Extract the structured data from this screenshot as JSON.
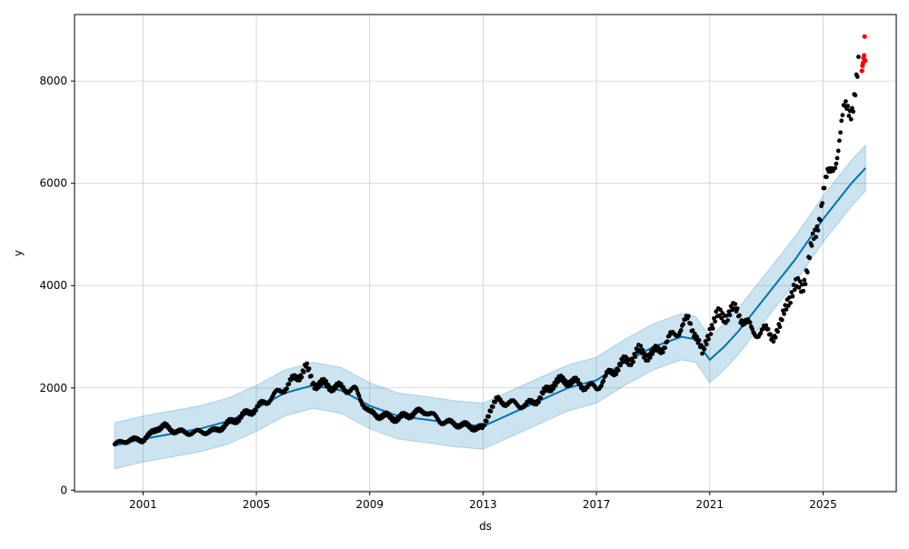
{
  "chart_data": {
    "type": "scatter",
    "title": "",
    "xlabel": "ds",
    "ylabel": "y",
    "x_ticks": [
      "2001",
      "2005",
      "2009",
      "2013",
      "2017",
      "2021",
      "2025"
    ],
    "y_ticks": [
      "0",
      "2000",
      "4000",
      "6000",
      "8000"
    ],
    "xlim": [
      "1998-08-01",
      "2027-08-01"
    ],
    "ylim": [
      -30,
      9300
    ],
    "grid": true,
    "colors": {
      "observed": "#000000",
      "forecast_line": "#0072b2",
      "uncertainty_band": "#0072b2",
      "highlight": "#ff0000"
    },
    "series": [
      {
        "style": "black-dots",
        "points": [
          [
            "2000-01-01",
            900
          ],
          [
            "2000-07-01",
            980
          ],
          [
            "2001-01-01",
            990
          ],
          [
            "2001-04-01",
            1080
          ],
          [
            "2001-07-01",
            1220
          ],
          [
            "2001-10-01",
            1250
          ],
          [
            "2002-01-01",
            1180
          ],
          [
            "2002-07-01",
            1120
          ],
          [
            "2003-01-01",
            1140
          ],
          [
            "2003-07-01",
            1150
          ],
          [
            "2004-01-01",
            1300
          ],
          [
            "2004-07-01",
            1450
          ],
          [
            "2005-01-01",
            1600
          ],
          [
            "2005-07-01",
            1800
          ],
          [
            "2006-01-01",
            2000
          ],
          [
            "2006-07-01",
            2250
          ],
          [
            "2006-10-01",
            2400
          ],
          [
            "2007-01-01",
            2100
          ],
          [
            "2007-07-01",
            2050
          ],
          [
            "2008-01-01",
            2000
          ],
          [
            "2008-07-01",
            1950
          ],
          [
            "2009-01-01",
            1500
          ],
          [
            "2009-07-01",
            1450
          ],
          [
            "2010-01-01",
            1400
          ],
          [
            "2010-07-01",
            1500
          ],
          [
            "2011-01-01",
            1550
          ],
          [
            "2011-07-01",
            1350
          ],
          [
            "2012-01-01",
            1300
          ],
          [
            "2012-07-01",
            1250
          ],
          [
            "2013-01-01",
            1200
          ],
          [
            "2013-04-01",
            1600
          ],
          [
            "2013-07-01",
            1750
          ],
          [
            "2014-01-01",
            1700
          ],
          [
            "2014-07-01",
            1650
          ],
          [
            "2015-01-01",
            1800
          ],
          [
            "2015-07-01",
            2100
          ],
          [
            "2016-01-01",
            2150
          ],
          [
            "2016-07-01",
            2050
          ],
          [
            "2017-01-01",
            2000
          ],
          [
            "2017-07-01",
            2300
          ],
          [
            "2018-01-01",
            2500
          ],
          [
            "2018-07-01",
            2700
          ],
          [
            "2019-01-01",
            2650
          ],
          [
            "2019-07-01",
            2900
          ],
          [
            "2020-01-01",
            3200
          ],
          [
            "2020-04-01",
            3300
          ],
          [
            "2020-07-01",
            3100
          ],
          [
            "2020-10-01",
            2600
          ],
          [
            "2021-01-01",
            3200
          ],
          [
            "2021-04-01",
            3350
          ],
          [
            "2021-07-01",
            3450
          ],
          [
            "2022-01-01",
            3500
          ],
          [
            "2022-04-01",
            3300
          ],
          [
            "2022-07-01",
            3100
          ],
          [
            "2023-01-01",
            3100
          ],
          [
            "2023-04-01",
            3050
          ],
          [
            "2023-07-01",
            3150
          ],
          [
            "2023-10-01",
            3800
          ],
          [
            "2024-01-01",
            3900
          ],
          [
            "2024-04-01",
            4000
          ],
          [
            "2024-07-01",
            4500
          ],
          [
            "2024-10-01",
            5000
          ],
          [
            "2025-01-01",
            5900
          ],
          [
            "2025-04-01",
            6100
          ],
          [
            "2025-07-01",
            6700
          ],
          [
            "2025-10-01",
            7300
          ],
          [
            "2026-01-01",
            7600
          ],
          [
            "2026-04-01",
            8100
          ]
        ]
      },
      {
        "style": "red-dots",
        "points": [
          [
            "2026-05-15",
            8200
          ],
          [
            "2026-05-22",
            8300
          ],
          [
            "2026-05-29",
            8350
          ],
          [
            "2026-06-05",
            8450
          ],
          [
            "2026-06-12",
            8500
          ],
          [
            "2026-06-19",
            8870
          ],
          [
            "2026-06-26",
            8400
          ]
        ]
      },
      {
        "style": "blue-line",
        "points": [
          [
            "2000-01-01",
            870
          ],
          [
            "2001-01-01",
            1000
          ],
          [
            "2002-01-01",
            1100
          ],
          [
            "2003-01-01",
            1200
          ],
          [
            "2004-01-01",
            1350
          ],
          [
            "2005-01-01",
            1600
          ],
          [
            "2006-01-01",
            1900
          ],
          [
            "2007-01-01",
            2050
          ],
          [
            "2008-01-01",
            1950
          ],
          [
            "2009-01-01",
            1650
          ],
          [
            "2010-01-01",
            1450
          ],
          [
            "2011-01-01",
            1380
          ],
          [
            "2012-01-01",
            1300
          ],
          [
            "2013-01-01",
            1250
          ],
          [
            "2014-01-01",
            1500
          ],
          [
            "2015-01-01",
            1750
          ],
          [
            "2016-01-01",
            2000
          ],
          [
            "2017-01-01",
            2150
          ],
          [
            "2018-01-01",
            2500
          ],
          [
            "2019-01-01",
            2800
          ],
          [
            "2020-01-01",
            3000
          ],
          [
            "2020-07-01",
            2950
          ],
          [
            "2021-01-01",
            2550
          ],
          [
            "2021-07-01",
            2800
          ],
          [
            "2022-01-01",
            3100
          ],
          [
            "2023-01-01",
            3800
          ],
          [
            "2024-01-01",
            4500
          ],
          [
            "2025-01-01",
            5300
          ],
          [
            "2026-01-01",
            6000
          ],
          [
            "2026-07-01",
            6300
          ]
        ],
        "band_halfwidth": 450
      }
    ]
  }
}
